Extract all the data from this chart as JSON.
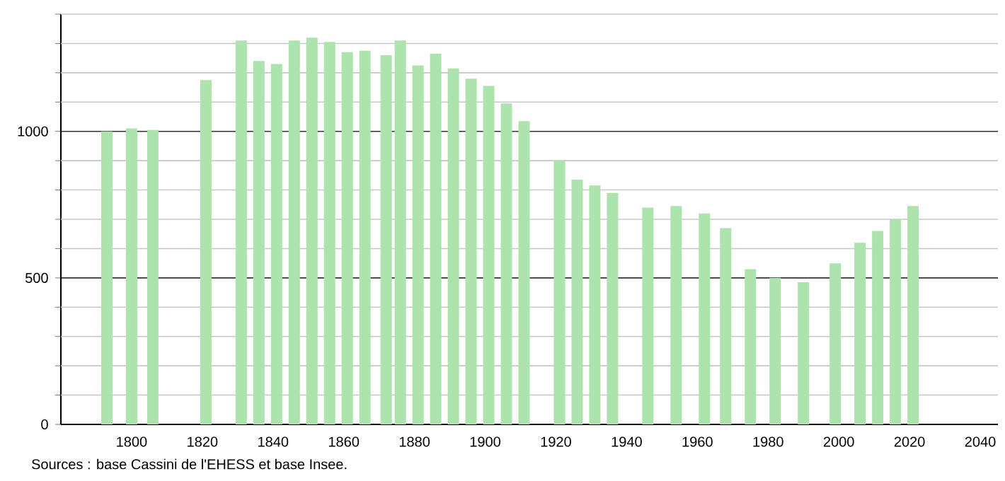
{
  "chart_data": {
    "type": "bar",
    "x": [
      1793,
      1800,
      1806,
      1821,
      1831,
      1836,
      1841,
      1846,
      1851,
      1856,
      1861,
      1866,
      1872,
      1876,
      1881,
      1886,
      1891,
      1896,
      1901,
      1906,
      1911,
      1921,
      1926,
      1931,
      1936,
      1946,
      1954,
      1962,
      1968,
      1975,
      1982,
      1990,
      1999,
      2006,
      2011,
      2016,
      2021
    ],
    "values": [
      1000,
      1010,
      1005,
      1175,
      1310,
      1240,
      1230,
      1310,
      1320,
      1305,
      1270,
      1275,
      1260,
      1310,
      1225,
      1265,
      1215,
      1180,
      1155,
      1095,
      1035,
      900,
      835,
      815,
      790,
      740,
      745,
      720,
      670,
      530,
      500,
      485,
      550,
      620,
      660,
      700,
      745
    ],
    "color": "#ade3ac",
    "xlim": [
      1780,
      2045
    ],
    "ylim": [
      0,
      1400
    ],
    "xticks": [
      1800,
      1820,
      1840,
      1860,
      1880,
      1900,
      1920,
      1940,
      1960,
      1980,
      2000,
      2020,
      2040
    ],
    "yticks": [
      0,
      {
        "value": 100,
        "label": null
      },
      {
        "value": 200,
        "label": null
      },
      {
        "value": 300,
        "label": null
      },
      {
        "value": 400,
        "label": null
      },
      500,
      {
        "value": 600,
        "label": null
      },
      {
        "value": 700,
        "label": null
      },
      {
        "value": 800,
        "label": null
      },
      {
        "value": 900,
        "label": null
      },
      1000,
      {
        "value": 1100,
        "label": null
      },
      {
        "value": 1200,
        "label": null
      },
      {
        "value": 1300,
        "label": null
      },
      {
        "value": 1400,
        "label": null
      }
    ],
    "grid": "y",
    "annotations": [
      "Sources : base Cassini de l'EHESS et base Insee."
    ]
  }
}
